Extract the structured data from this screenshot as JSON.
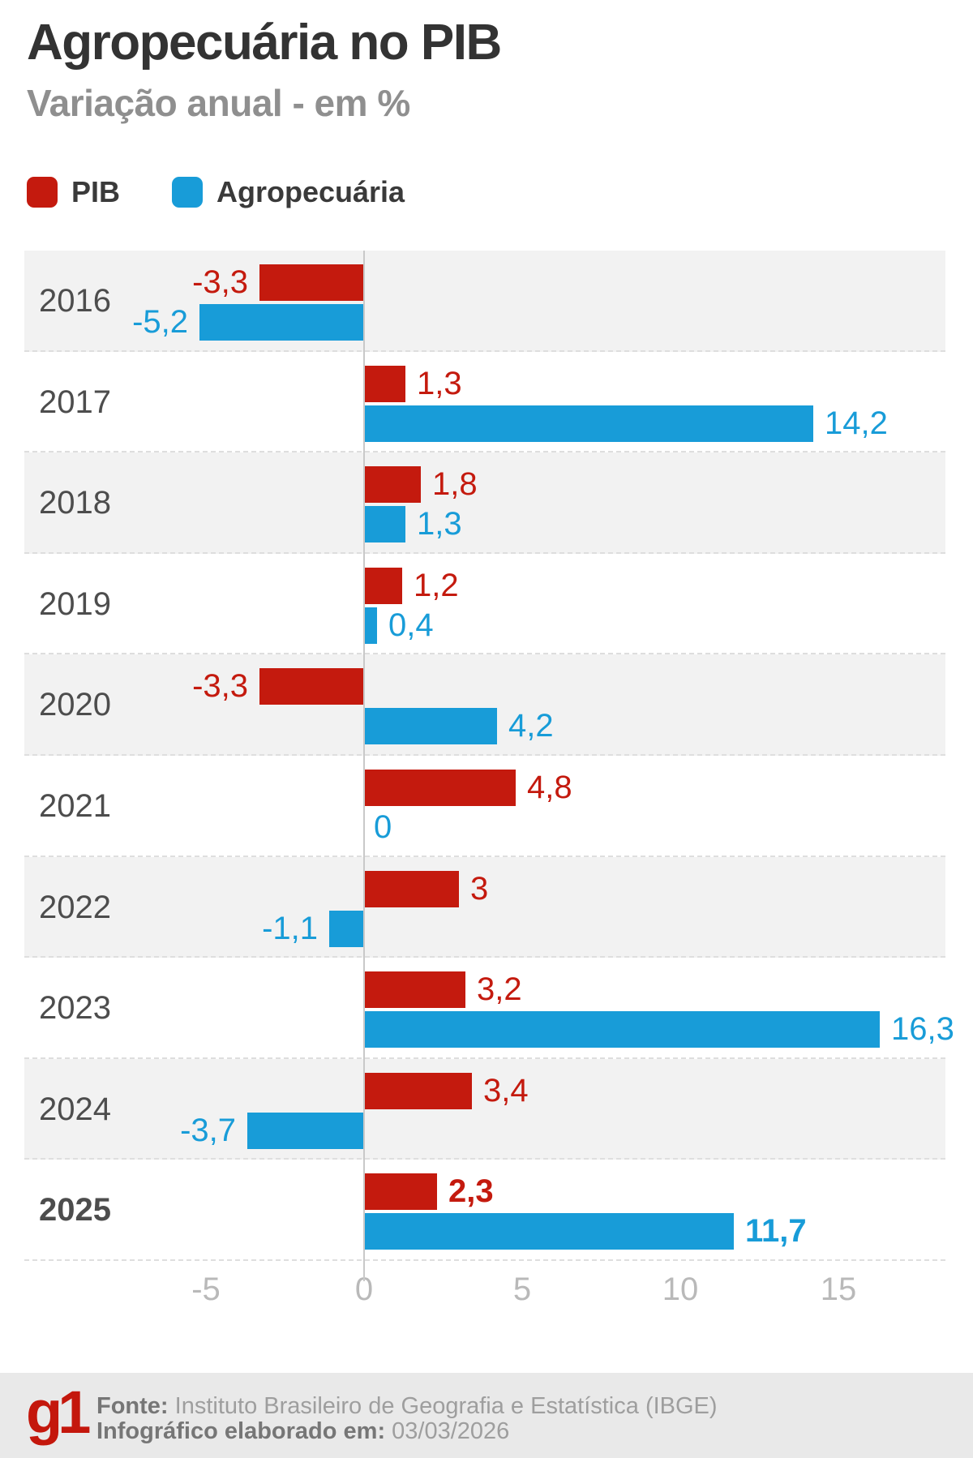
{
  "header": {
    "title": "Agropecuária no PIB",
    "subtitle": "Variação anual - em %"
  },
  "legend": [
    {
      "label": "PIB",
      "color": "#c41a0e"
    },
    {
      "label": "Agropecuária",
      "color": "#189cd8"
    }
  ],
  "chart_data": {
    "type": "bar",
    "orientation": "horizontal",
    "title": "Agropecuária no PIB",
    "subtitle": "Variação anual - em %",
    "unit": "%",
    "categories": [
      "2016",
      "2017",
      "2018",
      "2019",
      "2020",
      "2021",
      "2022",
      "2023",
      "2024",
      "2025"
    ],
    "series": [
      {
        "name": "PIB",
        "color": "#c41a0e",
        "values": [
          -3.3,
          1.3,
          1.8,
          1.2,
          -3.3,
          4.8,
          3,
          3.2,
          3.4,
          2.3
        ],
        "labels": [
          "-3,3",
          "1,3",
          "1,8",
          "1,2",
          "-3,3",
          "4,8",
          "3",
          "3,2",
          "3,4",
          "2,3"
        ]
      },
      {
        "name": "Agropecuária",
        "color": "#189cd8",
        "values": [
          -5.2,
          14.2,
          1.3,
          0.4,
          4.2,
          0,
          -1.1,
          16.3,
          -3.7,
          11.7
        ],
        "labels": [
          "-5,2",
          "14,2",
          "1,3",
          "0,4",
          "4,2",
          "0",
          "-1,1",
          "16,3",
          "-3,7",
          "11,7"
        ]
      }
    ],
    "x_axis": {
      "ticks": [
        -5,
        0,
        5,
        10,
        15
      ],
      "tick_labels": [
        "-5",
        "0",
        "5",
        "10",
        "15"
      ],
      "range": [
        -5.7,
        18.4
      ],
      "grid": false
    },
    "legend_position": "top",
    "highlighted_category": "2025",
    "row_shading": "alternating"
  },
  "colors": {
    "pib": "#c41a0e",
    "agro": "#189cd8",
    "row_shade": "#f2f2f2",
    "zero_line": "#c9c9c9",
    "footer_bg": "#e9e9e9",
    "logo_red": "#c4170c"
  },
  "footer": {
    "logo": "g1",
    "source_label": "Fonte:",
    "source_value": "Instituto Brasileiro de Geografia e Estatística (IBGE)",
    "date_label": "Infográfico elaborado em:",
    "date_value": "03/03/2026"
  }
}
